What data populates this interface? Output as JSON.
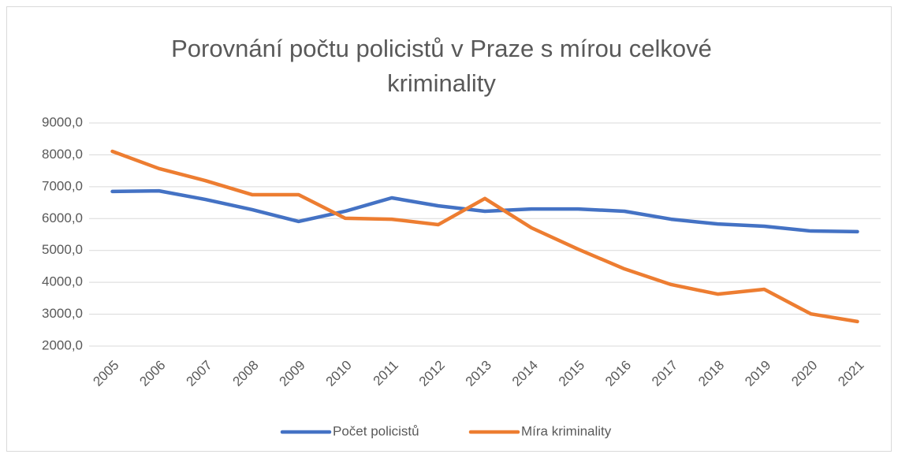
{
  "chart_data": {
    "type": "line",
    "title": "Porovnání počtu policistů v Praze s mírou celkové kriminality",
    "categories": [
      "2005",
      "2006",
      "2007",
      "2008",
      "2009",
      "2010",
      "2011",
      "2012",
      "2013",
      "2014",
      "2015",
      "2016",
      "2017",
      "2018",
      "2019",
      "2020",
      "2021"
    ],
    "series": [
      {
        "name": "Počet policistů",
        "color": "#4472c4",
        "values": [
          6850,
          6870,
          6600,
          6280,
          5910,
          6230,
          6650,
          6400,
          6230,
          6300,
          6300,
          6230,
          5980,
          5830,
          5760,
          5610,
          5590
        ]
      },
      {
        "name": "Míra kriminality",
        "color": "#ed7d31",
        "values": [
          8110,
          7570,
          7190,
          6750,
          6750,
          6010,
          5980,
          5810,
          6630,
          5710,
          5040,
          4420,
          3930,
          3630,
          3780,
          3010,
          2770
        ]
      }
    ],
    "ylim": [
      2000,
      9000
    ],
    "yticks": [
      {
        "value": 2000,
        "label": "2000,0"
      },
      {
        "value": 3000,
        "label": "3000,0"
      },
      {
        "value": 4000,
        "label": "4000,0"
      },
      {
        "value": 5000,
        "label": "5000,0"
      },
      {
        "value": 6000,
        "label": "6000,0"
      },
      {
        "value": 7000,
        "label": "7000,0"
      },
      {
        "value": 8000,
        "label": "8000,0"
      },
      {
        "value": 9000,
        "label": "9000,0"
      }
    ],
    "grid": true,
    "legend": "bottom"
  }
}
